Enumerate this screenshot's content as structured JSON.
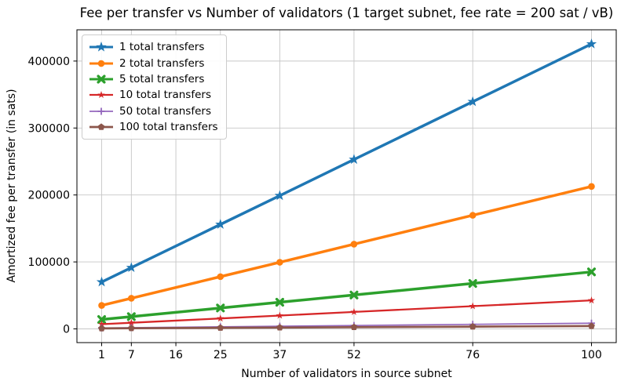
{
  "chart_data": {
    "type": "line",
    "title": "Fee per transfer vs Number of validators (1 target subnet, fee rate = 200 sat / vB)",
    "xlabel": "Number of validators in source subnet",
    "ylabel": "Amortized fee per transfer (in sats)",
    "x": [
      1,
      7,
      25,
      37,
      52,
      76,
      100
    ],
    "xticks": [
      1,
      7,
      16,
      25,
      37,
      52,
      76,
      100
    ],
    "yticks": [
      0,
      100000,
      200000,
      300000,
      400000
    ],
    "xlim": [
      -4,
      105
    ],
    "ylim": [
      -20500,
      446700
    ],
    "grid": true,
    "grid_color": "#c6c6c6",
    "legend_position": "upper-left",
    "series": [
      {
        "name": "1 total transfers",
        "color": "#1f77b4",
        "marker": "star",
        "linewidth": 3.5,
        "values": [
          70000,
          91500,
          156000,
          199000,
          253000,
          339300,
          425500
        ]
      },
      {
        "name": "2 total transfers",
        "color": "#ff7f0e",
        "marker": "circle",
        "linewidth": 3.5,
        "values": [
          35000,
          45750,
          78000,
          99500,
          126500,
          169650,
          212750
        ]
      },
      {
        "name": "5 total transfers",
        "color": "#2ca02c",
        "marker": "X",
        "linewidth": 3.5,
        "values": [
          14000,
          18300,
          31200,
          39800,
          50600,
          67860,
          85100
        ]
      },
      {
        "name": "10 total transfers",
        "color": "#d62728",
        "marker": "star-thin",
        "linewidth": 2.3,
        "values": [
          7000,
          9150,
          15600,
          19900,
          25300,
          33930,
          42550
        ]
      },
      {
        "name": "50 total transfers",
        "color": "#9467bd",
        "marker": "plus",
        "linewidth": 1.7,
        "values": [
          1400,
          1830,
          3120,
          3980,
          5060,
          6790,
          8510
        ]
      },
      {
        "name": "100 total transfers",
        "color": "#8c564b",
        "marker": "pentagon",
        "linewidth": 2.7,
        "values": [
          700,
          915,
          1560,
          1990,
          2530,
          3390,
          4255
        ]
      }
    ]
  }
}
